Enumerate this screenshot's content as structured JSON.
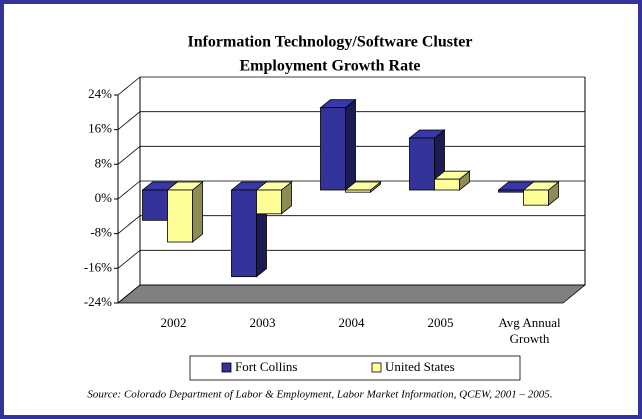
{
  "chart_data": {
    "type": "bar3d",
    "title": [
      "Information Technology/Software Cluster",
      "Employment Growth Rate"
    ],
    "categories": [
      "2002",
      "2003",
      "2004",
      "2005",
      "Avg Annual\nGrowth"
    ],
    "series": [
      {
        "name": "Fort Collins",
        "color": "#333399",
        "values": [
          -7,
          -20,
          19,
          12,
          -0.5
        ]
      },
      {
        "name": "United States",
        "color": "#ffff99",
        "values": [
          -12,
          -5.5,
          -0.5,
          2.5,
          -3.5
        ]
      }
    ],
    "ylim": [
      -24,
      24
    ],
    "yticks": [
      {
        "value": -24,
        "label": "-24%"
      },
      {
        "value": -16,
        "label": "-16%"
      },
      {
        "value": -8,
        "label": "-8%"
      },
      {
        "value": 0,
        "label": "0%"
      },
      {
        "value": 8,
        "label": "8%"
      },
      {
        "value": 16,
        "label": "16%"
      },
      {
        "value": 24,
        "label": "24%"
      }
    ],
    "grid": true,
    "legend": "bottom",
    "source": "Source: Colorado Department of Labor & Employment, Labor Market Information, QCEW, 2001 – 2005."
  }
}
